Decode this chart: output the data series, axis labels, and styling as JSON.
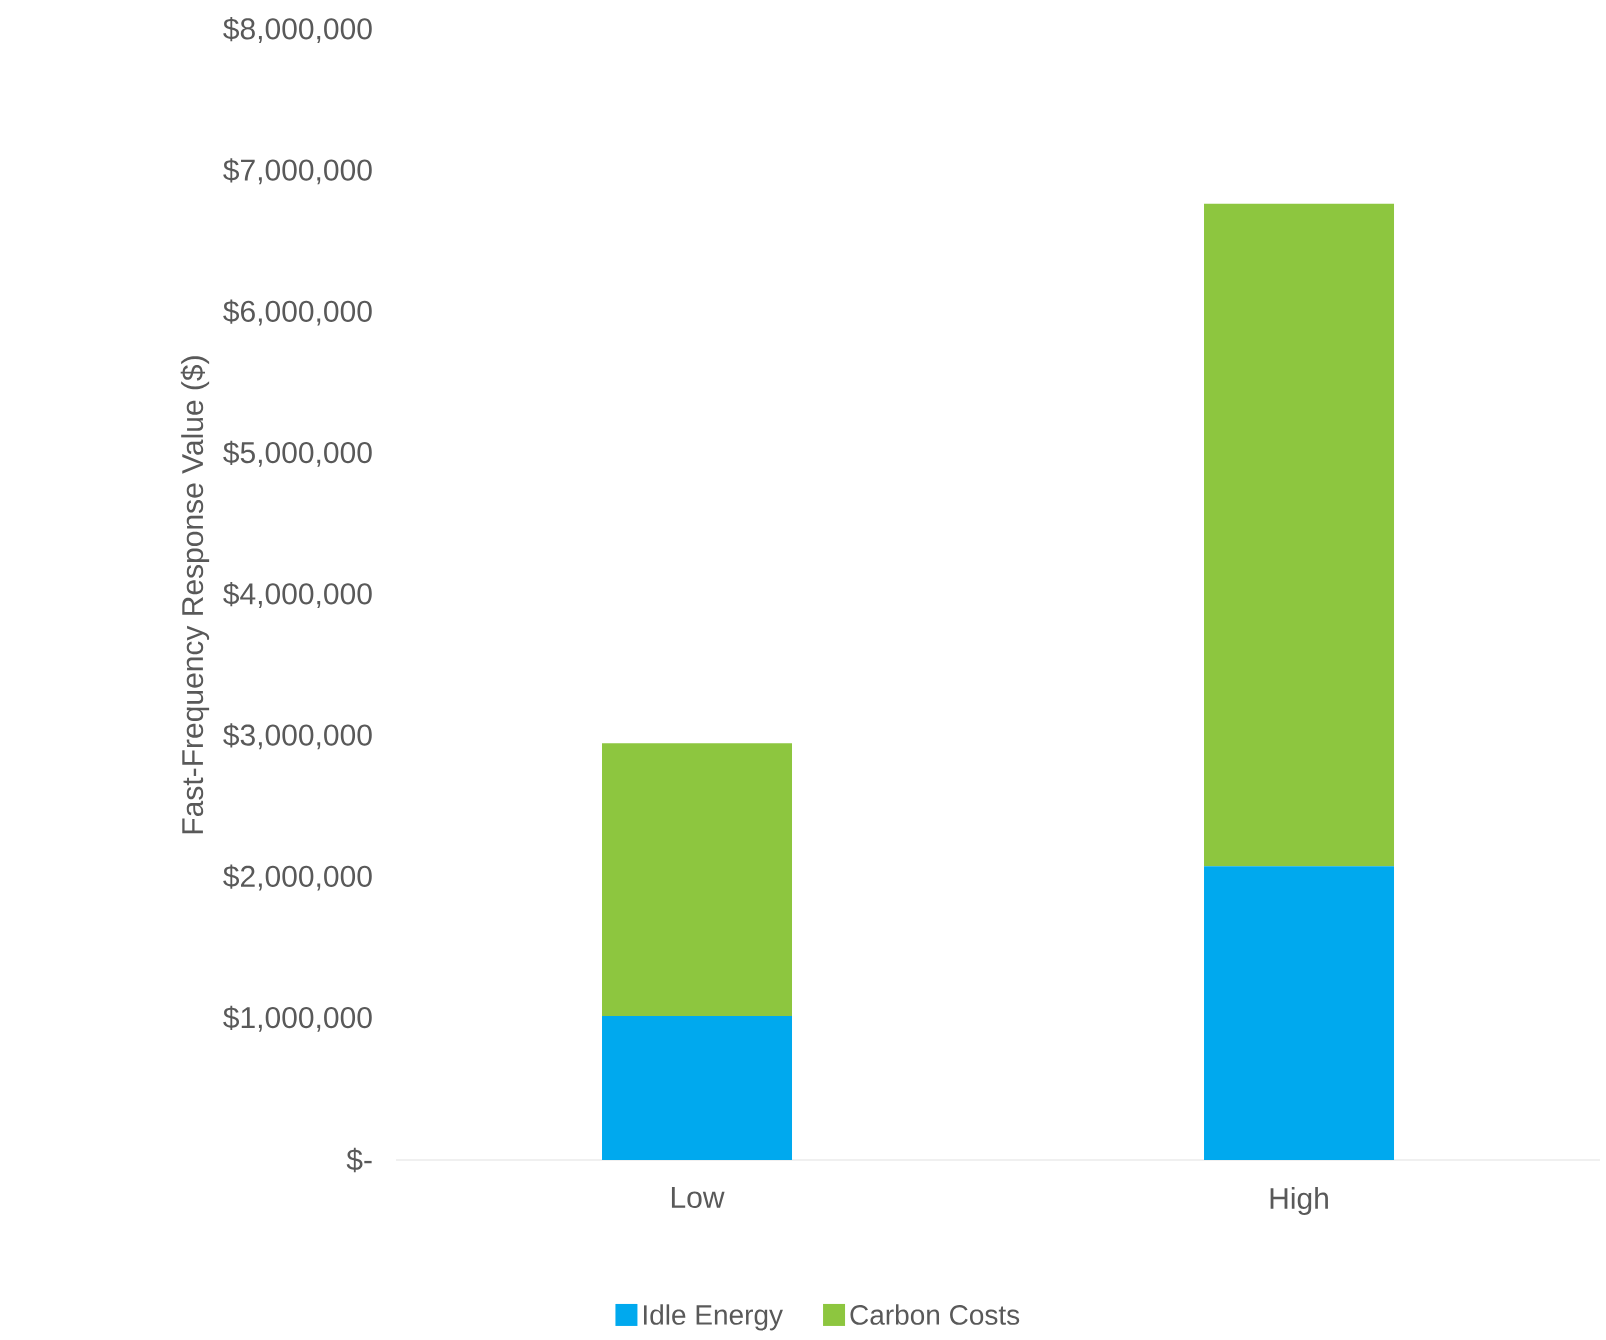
{
  "chart_data": {
    "type": "bar",
    "stacked": true,
    "ylabel": "Fast-Frequency Response Value ($)",
    "categories": [
      "Low",
      "High"
    ],
    "series": [
      {
        "name": "Idle Energy",
        "color": "#00a9ee",
        "values": [
          1020000,
          2080000
        ]
      },
      {
        "name": "Carbon Costs",
        "color": "#8dc63f",
        "values": [
          1930000,
          4690000
        ]
      }
    ],
    "ylim": [
      0,
      8000000
    ],
    "yticks": [
      {
        "value": 0,
        "label": "$-"
      },
      {
        "value": 1000000,
        "label": "$1,000,000"
      },
      {
        "value": 2000000,
        "label": "$2,000,000"
      },
      {
        "value": 3000000,
        "label": "$3,000,000"
      },
      {
        "value": 4000000,
        "label": "$4,000,000"
      },
      {
        "value": 5000000,
        "label": "$5,000,000"
      },
      {
        "value": 6000000,
        "label": "$6,000,000"
      },
      {
        "value": 7000000,
        "label": "$7,000,000"
      },
      {
        "value": 8000000,
        "label": "$8,000,000"
      }
    ],
    "legend": "bottom"
  }
}
